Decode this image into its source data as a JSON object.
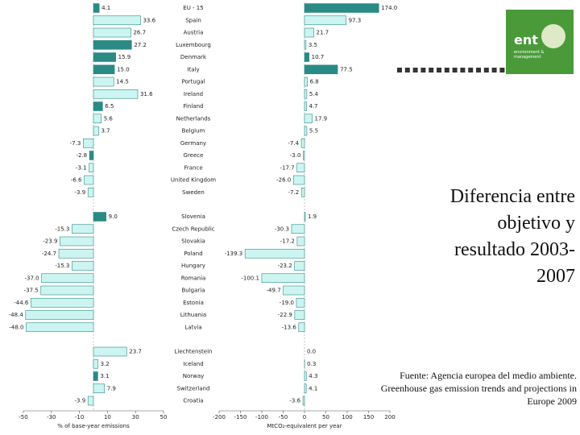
{
  "title": "Diferencia entre objetivo y resultado 2003-2007",
  "source": "Fuente: Agencia europea del medio ambiente. Greenhouse gas emission trends and projections in Europe 2009",
  "logo": {
    "name": "ent",
    "subtitle": "environment & management"
  },
  "chart_data": [
    {
      "type": "bar",
      "orientation": "horizontal",
      "x_label": "% of base-year emissions",
      "categories": [
        "EU - 15",
        "Spain",
        "Austria",
        "Luxembourg",
        "Denmark",
        "Italy",
        "Portugal",
        "Ireland",
        "Finland",
        "Netherlands",
        "Belgium",
        "Germany",
        "Greece",
        "France",
        "United Kingdom",
        "Sweden",
        "Slovenia",
        "Czech Republic",
        "Slovakia",
        "Poland",
        "Hungary",
        "Romania",
        "Bulgaria",
        "Estonia",
        "Lithuania",
        "Latvia",
        "Liechtenstein",
        "Iceland",
        "Norway",
        "Switzerland",
        "Croatia"
      ],
      "values": [
        4.1,
        33.6,
        26.7,
        27.2,
        15.9,
        15.0,
        14.5,
        31.6,
        6.5,
        5.6,
        3.7,
        -7.3,
        -2.8,
        -3.1,
        -6.6,
        -3.9,
        9.0,
        -15.3,
        -23.9,
        -24.7,
        -15.3,
        -37.0,
        -37.5,
        -44.6,
        -48.4,
        -48.0,
        23.7,
        3.2,
        3.1,
        7.9,
        -3.9
      ],
      "value_labels": [
        "4.1",
        "33.6",
        "26.7",
        "27.2",
        "15.9",
        "15.0",
        "14.5",
        "31.6",
        "6.5",
        "5.6",
        "3.7",
        "-7.3",
        "-2.8",
        "-3.1",
        "-6.6",
        "-3.9",
        "9.0",
        "-15.3",
        "-23.9",
        "-24.7",
        "-15.3",
        "-37.0",
        "-37.5",
        "-44.6",
        "-48.4",
        "-48.0",
        "23.7",
        "3.2",
        "3.1",
        "7.9",
        "-3.9"
      ],
      "colors": [
        "#2a8a86",
        "#ccf5f2",
        "#ccf5f2",
        "#2a8a86",
        "#2a8a86",
        "#2a8a86",
        "#ccf5f2",
        "#ccf5f2",
        "#2a8a86",
        "#ccf5f2",
        "#ccf5f2",
        "#ccf5f2",
        "#2a8a86",
        "#ccf5f2",
        "#ccf5f2",
        "#ccf5f2",
        "#2a8a86",
        "#ccf5f2",
        "#ccf5f2",
        "#ccf5f2",
        "#ccf5f2",
        "#ccf5f2",
        "#ccf5f2",
        "#ccf5f2",
        "#ccf5f2",
        "#ccf5f2",
        "#ccf5f2",
        "#ccf5f2",
        "#2a8a86",
        "#ccf5f2",
        "#ccf5f2"
      ],
      "xlim": [
        -50,
        50
      ],
      "xticks": [
        -50,
        -30,
        -10,
        10,
        30,
        50
      ]
    },
    {
      "type": "bar",
      "orientation": "horizontal",
      "x_label": "MtCO₂-equivalent per year",
      "values": [
        174.0,
        97.3,
        21.7,
        3.5,
        10.7,
        77.5,
        6.8,
        5.4,
        4.7,
        17.9,
        5.5,
        -7.4,
        -3.0,
        -17.7,
        -26.0,
        -7.2,
        1.9,
        -30.3,
        -17.2,
        -139.3,
        -23.2,
        -100.1,
        -49.7,
        -19.0,
        -22.9,
        -13.6,
        0.0,
        0.3,
        4.3,
        4.1,
        -3.6
      ],
      "value_labels": [
        "174.0",
        "97.3",
        "21.7",
        "3.5",
        "10.7",
        "77.5",
        "6.8",
        "5.4",
        "4.7",
        "17.9",
        "5.5",
        "-7.4",
        "-3.0",
        "-17.7",
        "-26.0",
        "-7.2",
        "1.9",
        "-30.3",
        "-17.2",
        "-139.3",
        "-23.2",
        "-100.1",
        "-49.7",
        "-19.0",
        "-22.9",
        "-13.6",
        "0.0",
        "0.3",
        "4.3",
        "4.1",
        "-3.6"
      ],
      "colors": [
        "#2a8a86",
        "#ccf5f2",
        "#ccf5f2",
        "#ccf5f2",
        "#2a8a86",
        "#2a8a86",
        "#ccf5f2",
        "#ccf5f2",
        "#ccf5f2",
        "#ccf5f2",
        "#ccf5f2",
        "#ccf5f2",
        "#ccf5f2",
        "#ccf5f2",
        "#ccf5f2",
        "#ccf5f2",
        "#ccf5f2",
        "#ccf5f2",
        "#ccf5f2",
        "#ccf5f2",
        "#ccf5f2",
        "#ccf5f2",
        "#ccf5f2",
        "#ccf5f2",
        "#ccf5f2",
        "#ccf5f2",
        "#ccf5f2",
        "#ccf5f2",
        "#ccf5f2",
        "#ccf5f2",
        "#ccf5f2"
      ],
      "xlim": [
        -200,
        200
      ],
      "xticks": [
        -200,
        -150,
        -100,
        -50,
        0,
        50,
        100,
        150,
        200
      ]
    }
  ]
}
